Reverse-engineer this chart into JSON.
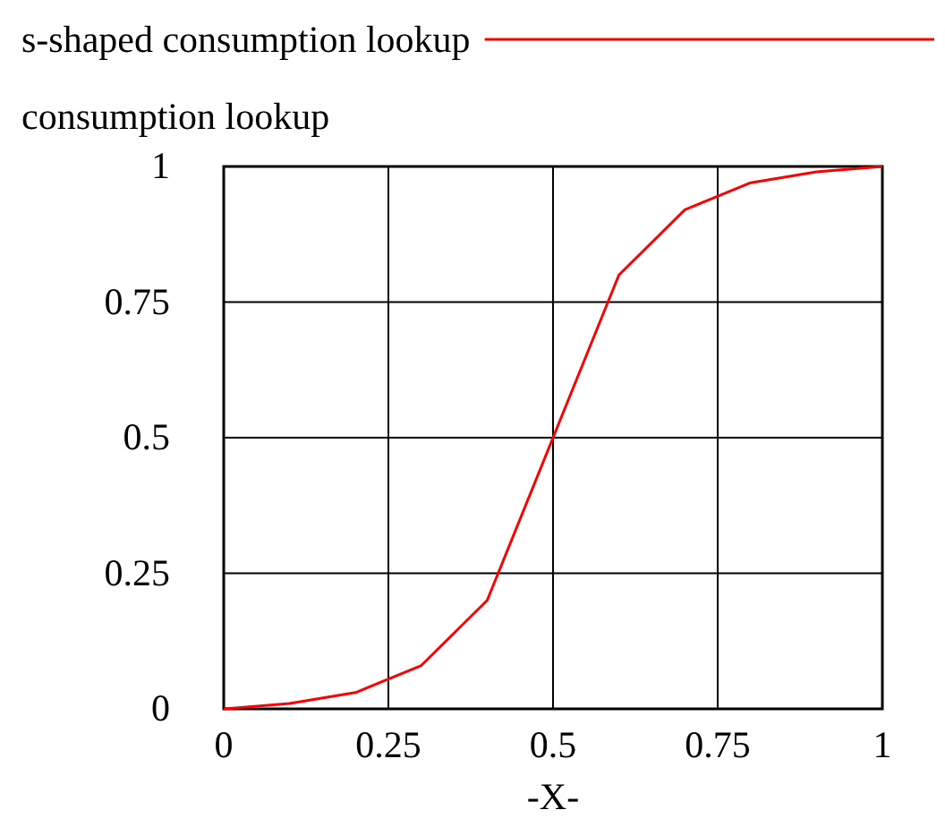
{
  "chart_data": {
    "type": "line",
    "xlabel": "-X-",
    "ylabel": "consumption lookup",
    "x": [
      0,
      0.1,
      0.2,
      0.3,
      0.4,
      0.5,
      0.6,
      0.7,
      0.8,
      0.9,
      1
    ],
    "series": [
      {
        "name": "s-shaped consumption lookup",
        "color": "#ff0000",
        "values": [
          0,
          0.01,
          0.03,
          0.08,
          0.2,
          0.5,
          0.8,
          0.92,
          0.97,
          0.99,
          1
        ]
      }
    ],
    "xlim": [
      0,
      1
    ],
    "ylim": [
      0,
      1
    ],
    "xticks": [
      0,
      0.25,
      0.5,
      0.75,
      1
    ],
    "yticks": [
      0,
      0.25,
      0.5,
      0.75,
      1
    ],
    "grid": true,
    "legend": "top",
    "marker": "none",
    "line_style": "solid"
  }
}
